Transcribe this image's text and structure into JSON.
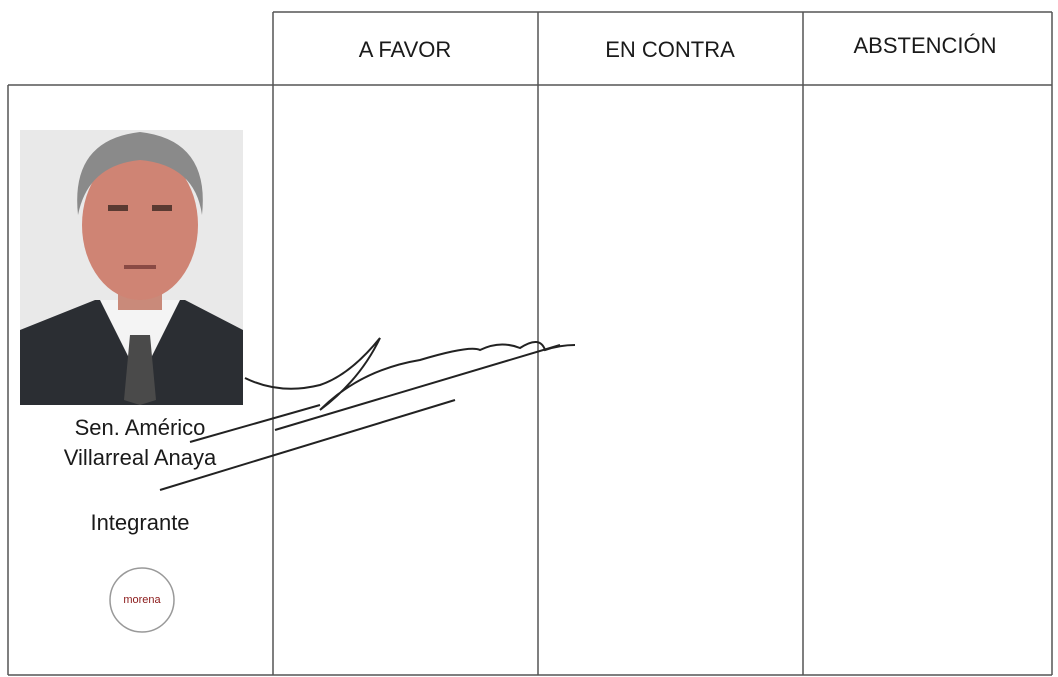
{
  "table": {
    "headers": [
      "A FAVOR",
      "EN CONTRA",
      "ABSTENCIÓN"
    ],
    "rows": [
      {
        "name": [
          "Sen. Américo",
          "Villarreal Anaya"
        ],
        "role": "Integrante",
        "party": "morena"
      }
    ]
  }
}
